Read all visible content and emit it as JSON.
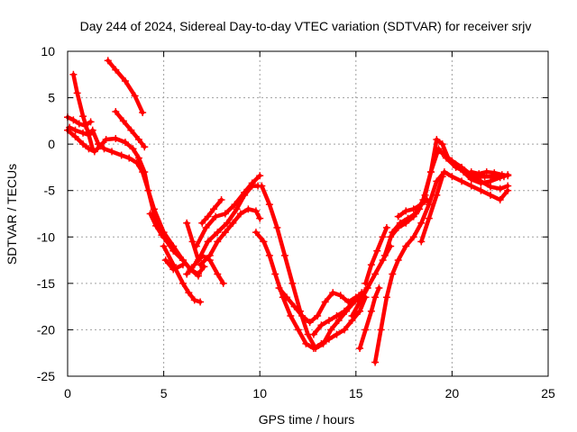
{
  "chart_data": {
    "type": "scatter",
    "title": "Day 244 of 2024, Sidereal Day-to-day VTEC variation (SDTVAR) for receiver srjv",
    "xlabel": "GPS time / hours",
    "ylabel": "SDTVAR / TECUs",
    "xlim": [
      0,
      25
    ],
    "ylim": [
      -25,
      10
    ],
    "xticks": [
      0,
      5,
      10,
      15,
      20,
      25
    ],
    "yticks": [
      -25,
      -20,
      -15,
      -10,
      -5,
      0,
      5,
      10
    ],
    "grid": true,
    "legend": "none",
    "color": "#ff0000",
    "series": [
      {
        "x": [
          0.0,
          0.3,
          0.6,
          0.9,
          1.2
        ],
        "y": [
          2.9,
          2.6,
          2.2,
          2.0,
          2.4
        ]
      },
      {
        "x": [
          0.0,
          0.4,
          0.8,
          1.1,
          1.4,
          1.7,
          2.0,
          2.5,
          3.0,
          3.4,
          3.7,
          4.0,
          4.2,
          4.5,
          5.0,
          5.5,
          6.0,
          6.4,
          6.8,
          7.1
        ],
        "y": [
          1.5,
          0.8,
          0.0,
          -0.5,
          -0.8,
          -0.2,
          0.5,
          0.6,
          0.2,
          -0.5,
          -1.5,
          -3.0,
          -5.0,
          -7.0,
          -9.5,
          -11.0,
          -12.5,
          -13.5,
          -14.0,
          -13.2
        ]
      },
      {
        "x": [
          0.1,
          0.4,
          0.8,
          1.1,
          1.3,
          1.6,
          1.9,
          2.3,
          2.8,
          3.2,
          3.6,
          3.9,
          4.2,
          4.5,
          5.0,
          5.5,
          6.0,
          6.4,
          6.8
        ],
        "y": [
          1.8,
          1.5,
          1.2,
          1.0,
          1.5,
          0.0,
          -0.5,
          -0.8,
          -1.2,
          -1.5,
          -2.0,
          -3.0,
          -5.0,
          -7.5,
          -10.0,
          -11.5,
          -12.5,
          -13.5,
          -14.2
        ]
      },
      {
        "x": [
          0.3,
          0.5,
          0.8,
          1.1,
          1.3
        ],
        "y": [
          7.5,
          5.5,
          3.0,
          1.0,
          -0.5
        ]
      },
      {
        "x": [
          2.1,
          2.5,
          3.0,
          3.5,
          3.9
        ],
        "y": [
          9.0,
          8.0,
          6.8,
          5.2,
          3.4
        ]
      },
      {
        "x": [
          2.5,
          2.9,
          3.3,
          3.7,
          4.0
        ],
        "y": [
          3.5,
          2.5,
          1.5,
          0.5,
          -0.3
        ]
      },
      {
        "x": [
          4.3,
          4.6,
          4.9,
          5.2
        ],
        "y": [
          -7.5,
          -8.8,
          -9.8,
          -10.5
        ]
      },
      {
        "x": [
          5.0,
          5.5,
          6.0,
          6.3,
          6.6,
          6.9
        ],
        "y": [
          -11.0,
          -13.0,
          -15.0,
          -16.0,
          -16.8,
          -17.0
        ]
      },
      {
        "x": [
          5.1,
          5.5,
          6.0
        ],
        "y": [
          -12.5,
          -13.5,
          -13.0
        ]
      },
      {
        "x": [
          6.2,
          6.5,
          6.8
        ],
        "y": [
          -8.5,
          -10.5,
          -12.5
        ]
      },
      {
        "x": [
          6.2,
          6.6,
          7.0,
          7.4,
          7.8,
          8.1
        ],
        "y": [
          -14.0,
          -13.0,
          -12.0,
          -12.5,
          -14.0,
          -15.0
        ]
      },
      {
        "x": [
          6.7,
          7.2,
          7.7,
          8.2,
          8.7,
          9.2,
          9.6,
          10.0
        ],
        "y": [
          -11.0,
          -9.0,
          -7.8,
          -7.5,
          -6.5,
          -5.2,
          -4.2,
          -3.4
        ]
      },
      {
        "x": [
          6.8,
          7.3,
          7.8,
          8.3,
          8.8,
          9.2,
          9.6,
          9.9
        ],
        "y": [
          -12.5,
          -10.5,
          -9.5,
          -8.5,
          -7.0,
          -5.5,
          -4.5,
          -4.5
        ]
      },
      {
        "x": [
          6.9,
          7.4,
          7.8,
          8.2,
          8.6,
          9.0,
          9.4,
          9.8,
          10.0
        ],
        "y": [
          -13.0,
          -12.0,
          -10.5,
          -9.5,
          -8.5,
          -7.5,
          -7.0,
          -7.2,
          -8.0
        ]
      },
      {
        "x": [
          7.0,
          7.3,
          7.6,
          8.0
        ],
        "y": [
          -8.5,
          -7.8,
          -7.0,
          -6.0
        ]
      },
      {
        "x": [
          9.8,
          10.2,
          10.5,
          10.8,
          11.2,
          11.6,
          12.0,
          12.4,
          12.8,
          13.2,
          13.6,
          14.0,
          14.4,
          14.8,
          15.2,
          15.5
        ],
        "y": [
          -9.5,
          -10.5,
          -12.0,
          -14.0,
          -16.5,
          -18.5,
          -20.0,
          -21.5,
          -22.0,
          -21.5,
          -21.0,
          -20.5,
          -20.0,
          -19.0,
          -18.0,
          -16.5
        ]
      },
      {
        "x": [
          10.1,
          10.5,
          10.9,
          11.3,
          11.7,
          12.1,
          12.5,
          12.9,
          13.3,
          13.7,
          14.1,
          14.5,
          14.9,
          15.3
        ],
        "y": [
          -4.5,
          -6.5,
          -9.0,
          -12.0,
          -15.0,
          -18.0,
          -20.5,
          -22.0,
          -21.5,
          -20.0,
          -19.0,
          -18.0,
          -17.0,
          -16.0
        ]
      },
      {
        "x": [
          11.0,
          11.4,
          11.8,
          12.2,
          12.6,
          13.0,
          13.4,
          13.8,
          14.2,
          14.6,
          15.0,
          15.4
        ],
        "y": [
          -15.5,
          -16.5,
          -17.5,
          -18.5,
          -19.2,
          -18.5,
          -17.0,
          -16.0,
          -16.3,
          -17.0,
          -16.5,
          -16.0
        ]
      },
      {
        "x": [
          12.8,
          13.2,
          13.6,
          14.0,
          14.4,
          14.8,
          15.2,
          15.6
        ],
        "y": [
          -20.5,
          -19.5,
          -19.0,
          -18.5,
          -18.0,
          -17.2,
          -16.5,
          -15.5
        ]
      },
      {
        "x": [
          14.8,
          15.2,
          15.6,
          16.0,
          16.4,
          16.8
        ],
        "y": [
          -18.5,
          -17.0,
          -15.5,
          -14.0,
          -12.5,
          -11.0
        ]
      },
      {
        "x": [
          15.2,
          15.5,
          15.8,
          16.0,
          16.2
        ],
        "y": [
          -22.0,
          -20.0,
          -18.0,
          -16.5,
          -15.5
        ]
      },
      {
        "x": [
          15.5,
          15.8,
          16.1,
          16.4,
          16.6
        ],
        "y": [
          -15.0,
          -13.0,
          -11.5,
          -10.0,
          -9.0
        ]
      },
      {
        "x": [
          16.0,
          16.3,
          16.6,
          16.9,
          17.2,
          17.6,
          18.0,
          18.4,
          18.8,
          19.2,
          19.6,
          20.0,
          20.5,
          21.0,
          21.5,
          22.0,
          22.5,
          22.9
        ],
        "y": [
          -23.5,
          -20.0,
          -16.5,
          -14.0,
          -12.5,
          -11.0,
          -10.0,
          -8.5,
          -6.5,
          -4.0,
          -3.0,
          -3.5,
          -4.0,
          -4.5,
          -5.0,
          -5.5,
          -6.0,
          -5.0
        ]
      },
      {
        "x": [
          16.5,
          16.9,
          17.3,
          17.7,
          18.1,
          18.5,
          18.9,
          19.3,
          19.7,
          20.2,
          20.7,
          21.2,
          21.7,
          22.2,
          22.7
        ],
        "y": [
          -12.0,
          -9.5,
          -8.5,
          -8.0,
          -7.5,
          -6.0,
          -3.0,
          -0.5,
          -1.5,
          -2.5,
          -3.0,
          -3.5,
          -3.5,
          -3.5,
          -3.5
        ]
      },
      {
        "x": [
          16.8,
          17.2,
          17.6,
          18.0,
          18.3,
          18.6,
          18.9,
          19.2,
          19.5,
          19.8,
          20.2,
          20.6,
          21.0,
          21.5,
          22.0,
          22.5,
          22.9
        ],
        "y": [
          -10.0,
          -9.0,
          -8.5,
          -7.8,
          -7.0,
          -5.5,
          -3.0,
          0.5,
          0.0,
          -1.5,
          -2.2,
          -3.0,
          -3.8,
          -4.2,
          -4.0,
          -3.6,
          -3.3
        ]
      },
      {
        "x": [
          17.2,
          17.6,
          18.0,
          18.4,
          18.7
        ],
        "y": [
          -7.8,
          -7.2,
          -7.0,
          -6.5,
          -6.0
        ]
      },
      {
        "x": [
          18.4,
          18.8,
          19.2,
          19.5
        ],
        "y": [
          -10.5,
          -8.0,
          -5.5,
          -3.5
        ]
      },
      {
        "x": [
          19.5,
          20.0,
          20.5,
          21.0,
          21.5,
          22.0,
          22.5,
          22.9
        ],
        "y": [
          -1.0,
          -1.8,
          -2.5,
          -3.3,
          -4.0,
          -4.6,
          -4.8,
          -4.5
        ]
      },
      {
        "x": [
          21.0,
          21.4,
          21.8,
          22.2,
          22.6,
          22.9
        ],
        "y": [
          -3.0,
          -3.2,
          -3.0,
          -3.1,
          -3.3,
          -3.4
        ]
      }
    ]
  }
}
